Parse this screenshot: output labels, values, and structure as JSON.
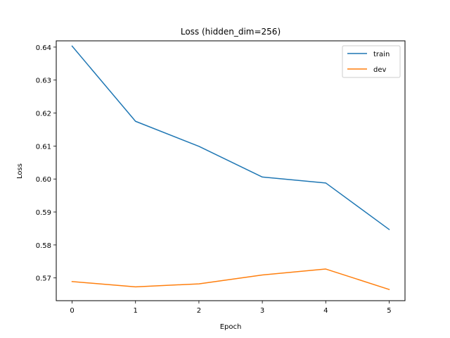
{
  "chart_data": {
    "type": "line",
    "title": "Loss (hidden_dim=256)",
    "xlabel": "Epoch",
    "ylabel": "Loss",
    "x": [
      0,
      1,
      2,
      3,
      4,
      5
    ],
    "xticks": [
      "0",
      "1",
      "2",
      "3",
      "4",
      "5"
    ],
    "yticks": [
      "0.57",
      "0.58",
      "0.59",
      "0.60",
      "0.61",
      "0.62",
      "0.63",
      "0.64"
    ],
    "xlim": [
      -0.25,
      5.25
    ],
    "ylim": [
      0.5631,
      0.6419
    ],
    "grid": false,
    "legend_position": "upper right",
    "series": [
      {
        "name": "train",
        "color": "#1f77b4",
        "values": [
          0.6403,
          0.6175,
          0.6099,
          0.6006,
          0.5988,
          0.5847
        ]
      },
      {
        "name": "dev",
        "color": "#ff7f0e",
        "values": [
          0.5689,
          0.5673,
          0.5682,
          0.5709,
          0.5727,
          0.5665
        ]
      }
    ]
  }
}
